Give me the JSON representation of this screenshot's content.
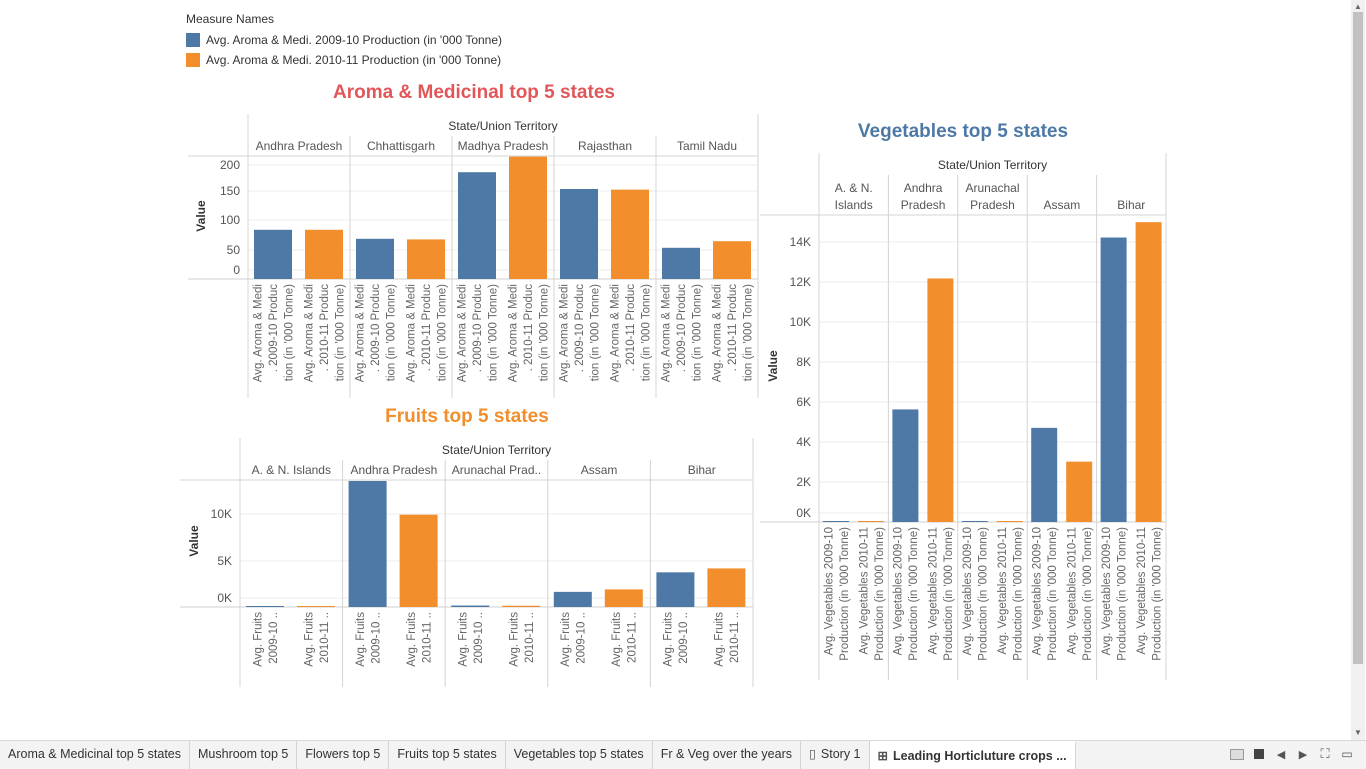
{
  "legend": {
    "title": "Measure Names",
    "items": [
      {
        "label": "Avg. Aroma & Medi. 2009-10 Production (in '000 Tonne)",
        "color": "#4e79a7"
      },
      {
        "label": "Avg. Aroma & Medi. 2010-11 Production (in '000 Tonne)",
        "color": "#f28e2b"
      }
    ]
  },
  "colors": {
    "series_2009": "#4e79a7",
    "series_2010": "#f28e2b",
    "title_red": "#e15759",
    "title_orange": "#f28e2b",
    "title_blue": "#4e79a7"
  },
  "chart_data": [
    {
      "type": "bar",
      "title": "Aroma & Medicinal top 5 states",
      "header": "State/Union Territory",
      "ylabel": "Value",
      "yticks": [
        "200",
        "150",
        "100",
        "50",
        "0"
      ],
      "ylim": [
        0,
        205
      ],
      "categories": [
        "Andhra Pradesh",
        "Chhattisgarh",
        "Madhya Pradesh",
        "Rajasthan",
        "Tamil Nadu"
      ],
      "measure_labels": [
        "Avg. Aroma & Medi. 2009-10 Production (in '000 Tonne)",
        "Avg. Aroma & Medi. 2010-11 Production (in '000 Tonne)"
      ],
      "series": [
        {
          "name": "Avg. Aroma & Medi. 2009-10 Production (in '000 Tonne)",
          "values": [
            82,
            67,
            178,
            150,
            52
          ]
        },
        {
          "name": "Avg. Aroma & Medi. 2010-11 Production (in '000 Tonne)",
          "values": [
            82,
            66,
            204,
            149,
            63
          ]
        }
      ],
      "legend": "top-left",
      "grid": true
    },
    {
      "type": "bar",
      "title": "Fruits top 5 states",
      "header": "State/Union Territory",
      "ylabel": "Value",
      "yticks": [
        "10K",
        "5K",
        "0K"
      ],
      "ylim": [
        0,
        13000
      ],
      "categories": [
        "A. & N. Islands",
        "Andhra Pradesh",
        "Arunachal Prad..",
        "Assam",
        "Bihar"
      ],
      "measure_labels": [
        "Avg. Fruits 2009-10 ..",
        "Avg. Fruits 2010-11 .."
      ],
      "series": [
        {
          "name": "Avg. Fruits 2009-10 ..",
          "values": [
            30,
            12900,
            150,
            1550,
            3550
          ]
        },
        {
          "name": "Avg. Fruits 2010-11 ..",
          "values": [
            30,
            9450,
            130,
            1800,
            3950
          ]
        }
      ],
      "grid": true
    },
    {
      "type": "bar",
      "title": "Vegetables top 5 states",
      "header": "State/Union Territory",
      "ylabel": "Value",
      "yticks": [
        "14K",
        "12K",
        "10K",
        "8K",
        "6K",
        "4K",
        "2K",
        "0K"
      ],
      "ylim": [
        0,
        15000
      ],
      "categories": [
        "A. & N.\nIslands",
        "Andhra\nPradesh",
        "Arunachal\nPradesh",
        "Assam",
        "Bihar"
      ],
      "measure_labels": [
        "Avg. Vegetables 2009-10\nProduction (in '000 Tonne)",
        "Avg. Vegetables 2010-11\nProduction (in '000 Tonne)"
      ],
      "series": [
        {
          "name": "Avg. Vegetables 2009-10 Production (in '000 Tonne)",
          "values": [
            30,
            5500,
            30,
            4600,
            13900
          ]
        },
        {
          "name": "Avg. Vegetables 2010-11 Production (in '000 Tonne)",
          "values": [
            30,
            11900,
            30,
            2950,
            14650
          ]
        }
      ],
      "grid": true
    }
  ],
  "tabs": [
    {
      "label": "Aroma & Medicinal top 5 states",
      "icon": "",
      "active": false
    },
    {
      "label": "Mushroom top 5",
      "icon": "",
      "active": false
    },
    {
      "label": "Flowers top 5",
      "icon": "",
      "active": false
    },
    {
      "label": "Fruits top 5 states",
      "icon": "",
      "active": false
    },
    {
      "label": "Vegetables top 5 states",
      "icon": "",
      "active": false
    },
    {
      "label": "Fr & Veg over the years",
      "icon": "",
      "active": false
    },
    {
      "label": "Story 1",
      "icon": "story-icon",
      "active": false
    },
    {
      "label": "Leading Horticluture crops ...",
      "icon": "dashboard-icon",
      "active": true
    }
  ]
}
